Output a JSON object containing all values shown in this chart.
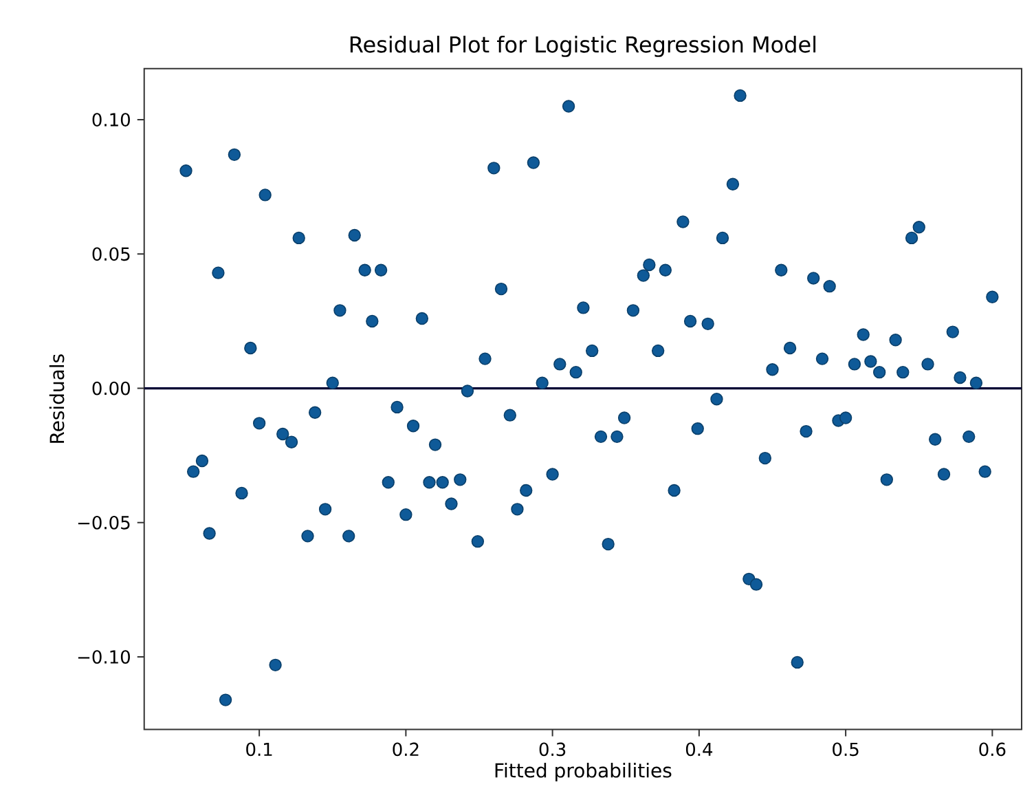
{
  "chart_data": {
    "type": "scatter",
    "title": "Residual Plot for Logistic Regression Model",
    "xlabel": "Fitted probabilities",
    "ylabel": "Residuals",
    "xlim": [
      0.0215,
      0.62
    ],
    "ylim": [
      -0.127,
      0.119
    ],
    "xticks": [
      0.1,
      0.2,
      0.3,
      0.4,
      0.5,
      0.6
    ],
    "yticks": [
      {
        "value": -0.1,
        "label": "−0.10"
      },
      {
        "value": -0.05,
        "label": "−0.05"
      },
      {
        "value": 0,
        "label": "0.00"
      },
      {
        "value": 0.05,
        "label": "0.05"
      },
      {
        "value": 0.1,
        "label": "0.10"
      }
    ],
    "marker": "circle",
    "ref_lines": [
      {
        "axis": "y",
        "value": 0,
        "color": "#000033"
      }
    ],
    "series": [
      {
        "color": "#0f5a98",
        "x": [
          0.05,
          0.083,
          0.104,
          0.127,
          0.165,
          0.172,
          0.183,
          0.072,
          0.155,
          0.177,
          0.211,
          0.094,
          0.15,
          0.194,
          0.205,
          0.22,
          0.1,
          0.138,
          0.116,
          0.122,
          0.061,
          0.055,
          0.088,
          0.188,
          0.216,
          0.145,
          0.2,
          0.066,
          0.133,
          0.161,
          0.111,
          0.077,
          0.225,
          0.237,
          0.231,
          0.311,
          0.26,
          0.287,
          0.265,
          0.254,
          0.242,
          0.249,
          0.271,
          0.282,
          0.276,
          0.3,
          0.293,
          0.305,
          0.316,
          0.327,
          0.321,
          0.333,
          0.344,
          0.349,
          0.338,
          0.355,
          0.362,
          0.366,
          0.377,
          0.389,
          0.372,
          0.383,
          0.394,
          0.406,
          0.399,
          0.412,
          0.416,
          0.428,
          0.423,
          0.445,
          0.434,
          0.439,
          0.456,
          0.45,
          0.462,
          0.467,
          0.473,
          0.478,
          0.489,
          0.484,
          0.495,
          0.5,
          0.506,
          0.512,
          0.517,
          0.523,
          0.528,
          0.534,
          0.539,
          0.545,
          0.55,
          0.556,
          0.561,
          0.567,
          0.573,
          0.578,
          0.584,
          0.589,
          0.595,
          0.6
        ],
        "values": [
          0.081,
          0.087,
          0.072,
          0.056,
          0.057,
          0.044,
          0.044,
          0.043,
          0.029,
          0.025,
          0.026,
          0.015,
          0.002,
          -0.007,
          -0.014,
          -0.021,
          -0.013,
          -0.009,
          -0.017,
          -0.02,
          -0.027,
          -0.031,
          -0.039,
          -0.035,
          -0.035,
          -0.045,
          -0.047,
          -0.054,
          -0.055,
          -0.055,
          -0.103,
          -0.116,
          -0.035,
          -0.034,
          -0.043,
          0.105,
          0.082,
          0.084,
          0.037,
          0.011,
          -0.001,
          -0.057,
          -0.01,
          -0.038,
          -0.045,
          -0.032,
          0.002,
          0.009,
          0.006,
          0.014,
          0.03,
          -0.018,
          -0.018,
          -0.011,
          -0.058,
          0.029,
          0.042,
          0.046,
          0.044,
          0.062,
          0.014,
          -0.038,
          0.025,
          0.024,
          -0.015,
          -0.004,
          0.056,
          0.109,
          0.076,
          -0.026,
          -0.071,
          -0.073,
          0.044,
          0.007,
          0.015,
          -0.102,
          -0.016,
          0.041,
          0.038,
          0.011,
          -0.012,
          -0.011,
          0.009,
          0.02,
          0.01,
          0.006,
          -0.034,
          0.018,
          0.006,
          0.056,
          0.06,
          0.009,
          -0.019,
          -0.032,
          0.021,
          0.004,
          -0.018,
          0.002,
          -0.031,
          0.034
        ]
      }
    ]
  }
}
